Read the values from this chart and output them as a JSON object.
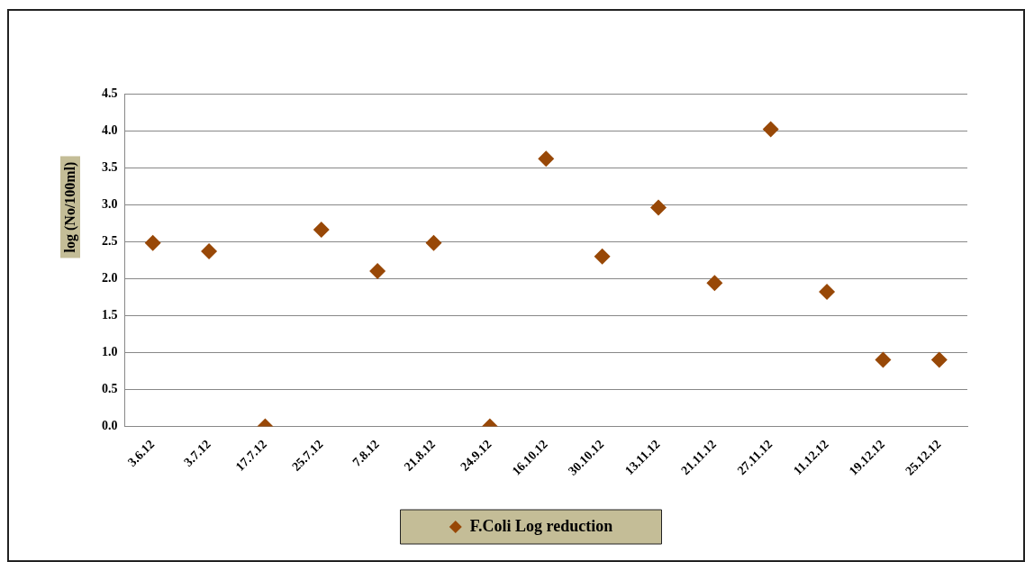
{
  "chart_data": {
    "type": "scatter",
    "ylabel": "log (No/100ml)",
    "categories": [
      "3.6.12",
      "3.7.12",
      "17.7.12",
      "25.7.12",
      "7.8.12",
      "21.8.12",
      "24.9.12",
      "16.10.12",
      "30.10.12",
      "13.11.12",
      "21.11.12",
      "27.11.12",
      "11.12.12",
      "19.12.12",
      "25.12.12"
    ],
    "series": [
      {
        "name": "F.Coli Log reduction",
        "color": "#984807",
        "values": [
          2.48,
          2.37,
          0,
          2.66,
          2.1,
          2.48,
          0,
          3.62,
          2.3,
          2.96,
          1.94,
          4.02,
          1.82,
          0.9,
          0.9
        ]
      }
    ],
    "ylim": [
      0,
      4.5
    ],
    "yticks": [
      {
        "value": 0,
        "label": "0.0"
      },
      {
        "value": 0.5,
        "label": "0.5"
      },
      {
        "value": 1,
        "label": "1.0"
      },
      {
        "value": 1.5,
        "label": "1.5"
      },
      {
        "value": 2,
        "label": "2.0"
      },
      {
        "value": 2.5,
        "label": "2.5"
      },
      {
        "value": 3,
        "label": "3.0"
      },
      {
        "value": 3.5,
        "label": "3.5"
      },
      {
        "value": 4,
        "label": "4.0"
      },
      {
        "value": 4.5,
        "label": "4.5"
      }
    ],
    "grid": "y",
    "legend": "bottom",
    "marker": "diamond"
  }
}
